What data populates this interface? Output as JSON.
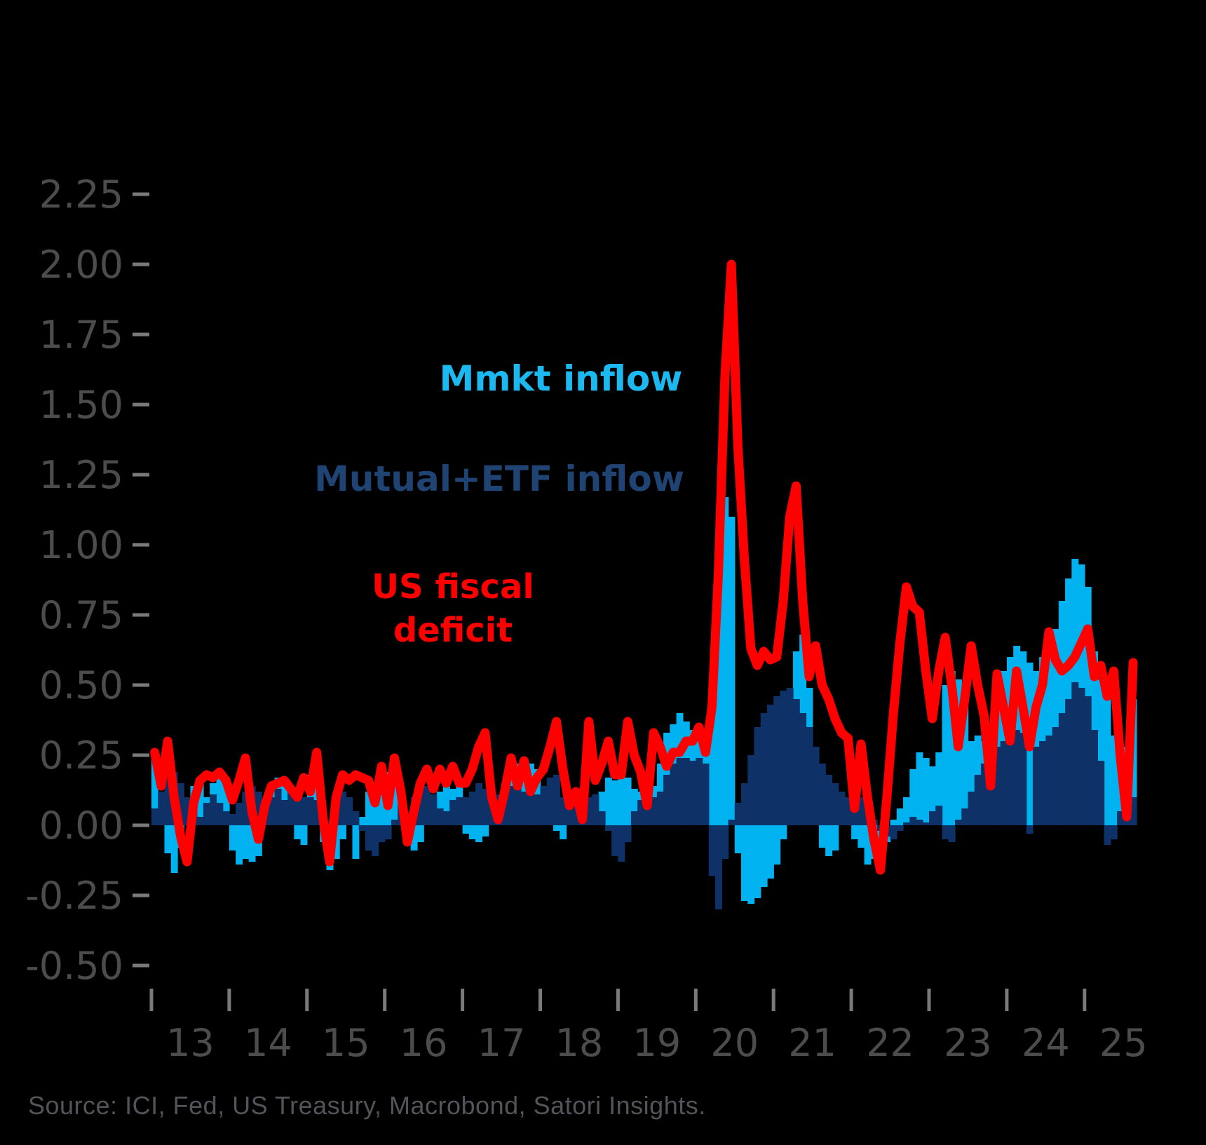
{
  "colors": {
    "background": "#000000",
    "mmkt_bar": "#00B3F0",
    "mutual_etf_bar": "#0E3167",
    "deficit_line": "#FF0000",
    "mmkt_label": "#1CB8F0",
    "mutual_etf_label": "#1F4473",
    "deficit_label": "#FF0000",
    "axis_text": "#4C4C4C",
    "tick_mark": "#7A7A7A",
    "source_text": "#53535A"
  },
  "legend": {
    "mmkt": "Mmkt inflow",
    "mutual_etf": "Mutual+ETF inflow",
    "deficit_line1": "US fiscal",
    "deficit_line2": "deficit"
  },
  "source": {
    "text": "Source: ICI, Fed, US Treasury, Macrobond, Satori Insights."
  },
  "chart_data": {
    "type": "bar",
    "subtype": "monthly bars with overlaid line",
    "title": "",
    "xlabel": "",
    "ylabel": "",
    "units": "USD trn (implied)",
    "ylim": [
      -0.5,
      2.25
    ],
    "grid": false,
    "legend_position": "floating text labels in plot area",
    "yticks": [
      "2.25",
      "2.00",
      "1.75",
      "1.50",
      "1.25",
      "1.00",
      "0.75",
      "0.50",
      "0.25",
      "0.00",
      "-0.25",
      "-0.50"
    ],
    "ytick_values": [
      2.25,
      2.0,
      1.75,
      1.5,
      1.25,
      1.0,
      0.75,
      0.5,
      0.25,
      0.0,
      -0.25,
      -0.5
    ],
    "xtick_labels": [
      "13",
      "14",
      "15",
      "16",
      "17",
      "18",
      "19",
      "20",
      "21",
      "22",
      "23",
      "24",
      "25"
    ],
    "xtick_years": [
      2013,
      2014,
      2015,
      2016,
      2017,
      2018,
      2019,
      2020,
      2021,
      2022,
      2023,
      2024,
      2025
    ],
    "x_start_month": "2013-01",
    "x_end_month": "2025-08",
    "series": [
      {
        "name": "Mmkt inflow",
        "type": "bar",
        "color": "#00B3F0",
        "values_by_year": {
          "2013": [
            0.27,
            0.12,
            -0.1,
            -0.17,
            -0.08,
            0.02,
            0.14,
            0.17,
            0.1,
            0.15,
            0.18,
            0.14
          ],
          "2014": [
            -0.09,
            -0.14,
            -0.12,
            -0.13,
            -0.11,
            0.05,
            0.13,
            0.17,
            0.15,
            0.06,
            -0.05,
            -0.07
          ],
          "2015": [
            0.18,
            0.2,
            -0.06,
            -0.16,
            -0.12,
            -0.05,
            0.05,
            -0.12,
            0.03,
            0.12,
            0.15,
            0.11
          ],
          "2016": [
            0.19,
            0.16,
            0.14,
            -0.07,
            -0.09,
            -0.06,
            0.04,
            0.09,
            0.12,
            0.15,
            0.13,
            0.14
          ],
          "2017": [
            -0.03,
            -0.05,
            -0.06,
            -0.04,
            0.05,
            0.1,
            0.15,
            0.23,
            0.22,
            0.18,
            0.22,
            0.2
          ],
          "2018": [
            0.1,
            0.06,
            -0.02,
            -0.05,
            0.06,
            0.07,
            0.09,
            0.06,
            0.08,
            0.12,
            0.17,
            0.16
          ],
          "2019": [
            0.19,
            0.17,
            0.13,
            0.12,
            0.16,
            0.14,
            0.22,
            0.33,
            0.36,
            0.4,
            0.37,
            0.34
          ],
          "2020": [
            0.3,
            0.32,
            0.4,
            1.02,
            1.17,
            1.1,
            -0.1,
            -0.27,
            -0.28,
            -0.26,
            -0.22,
            -0.19
          ],
          "2021": [
            -0.14,
            -0.05,
            0.45,
            0.62,
            0.68,
            0.49,
            0.19,
            -0.08,
            -0.11,
            -0.09,
            0.05,
            0.08
          ],
          "2022": [
            -0.05,
            -0.08,
            -0.14,
            -0.12,
            -0.05,
            -0.06,
            0.02,
            0.06,
            0.1,
            0.2,
            0.26,
            0.24
          ],
          "2023": [
            0.21,
            0.26,
            0.5,
            0.55,
            0.52,
            0.42,
            0.3,
            0.32,
            0.3,
            0.32,
            0.42,
            0.55
          ],
          "2024": [
            0.6,
            0.64,
            0.62,
            0.58,
            0.55,
            0.6,
            0.64,
            0.7,
            0.8,
            0.88,
            0.95,
            0.93
          ],
          "2025": [
            0.85,
            0.62,
            0.52,
            0.48,
            0.32,
            0.22,
            0.28,
            0.45
          ]
        }
      },
      {
        "name": "Mutual+ETF inflow",
        "type": "bar",
        "color": "#0E3167",
        "values_by_year": {
          "2013": [
            0.06,
            0.12,
            0.17,
            0.19,
            0.15,
            0.1,
            0.06,
            0.03,
            0.08,
            0.11,
            0.08,
            0.05
          ],
          "2014": [
            0.04,
            0.08,
            0.12,
            0.14,
            0.12,
            0.09,
            0.1,
            0.13,
            0.09,
            0.12,
            0.11,
            0.1
          ],
          "2015": [
            0.1,
            0.09,
            0.06,
            0.02,
            0.08,
            0.12,
            0.1,
            0.05,
            -0.02,
            -0.09,
            -0.11,
            -0.06
          ],
          "2016": [
            -0.05,
            0.02,
            0.08,
            0.05,
            0.1,
            0.13,
            0.14,
            0.11,
            0.06,
            0.05,
            0.09,
            0.1
          ],
          "2017": [
            0.1,
            0.12,
            0.15,
            0.13,
            0.12,
            0.11,
            0.13,
            0.14,
            0.13,
            0.12,
            0.14,
            0.11
          ],
          "2018": [
            0.14,
            0.17,
            0.18,
            0.1,
            0.11,
            0.1,
            0.09,
            0.1,
            0.11,
            0.05,
            -0.02,
            -0.11
          ],
          "2019": [
            -0.13,
            -0.06,
            0.05,
            0.09,
            0.11,
            0.1,
            0.12,
            0.18,
            0.22,
            0.24,
            0.24,
            0.23
          ],
          "2020": [
            0.24,
            0.22,
            -0.18,
            -0.3,
            -0.12,
            0.02,
            0.08,
            0.15,
            0.25,
            0.35,
            0.4,
            0.43
          ],
          "2021": [
            0.46,
            0.48,
            0.49,
            0.45,
            0.4,
            0.35,
            0.28,
            0.22,
            0.18,
            0.15,
            0.12,
            0.1
          ],
          "2022": [
            0.15,
            0.1,
            0.06,
            0.02,
            -0.02,
            -0.04,
            -0.05,
            -0.02,
            0.01,
            0.03,
            0.02,
            0.01
          ],
          "2023": [
            0.05,
            0.07,
            -0.05,
            -0.06,
            0.02,
            0.06,
            0.12,
            0.18,
            0.22,
            0.26,
            0.28,
            0.3
          ],
          "2024": [
            0.31,
            0.34,
            0.33,
            -0.03,
            0.28,
            0.3,
            0.32,
            0.35,
            0.4,
            0.45,
            0.51,
            0.49
          ],
          "2025": [
            0.46,
            0.34,
            0.23,
            -0.07,
            -0.05,
            0.05,
            0.02,
            0.1
          ]
        }
      },
      {
        "name": "US fiscal deficit",
        "type": "line",
        "color": "#FF0000",
        "values_by_year": {
          "2013": [
            0.26,
            0.14,
            0.3,
            0.1,
            -0.04,
            -0.13,
            0.08,
            0.16,
            0.18,
            0.17,
            0.19,
            0.16
          ],
          "2014": [
            0.09,
            0.16,
            0.24,
            0.05,
            -0.05,
            0.07,
            0.14,
            0.15,
            0.16,
            0.13,
            0.1,
            0.17
          ],
          "2015": [
            0.12,
            0.26,
            0.02,
            -0.13,
            0.1,
            0.18,
            0.16,
            0.18,
            0.17,
            0.16,
            0.08,
            0.21
          ],
          "2016": [
            0.07,
            0.24,
            0.12,
            -0.06,
            0.05,
            0.15,
            0.2,
            0.13,
            0.2,
            0.15,
            0.21,
            0.15
          ],
          "2017": [
            0.15,
            0.2,
            0.28,
            0.33,
            0.1,
            0.02,
            0.12,
            0.24,
            0.14,
            0.23,
            0.12,
            0.17
          ],
          "2018": [
            0.2,
            0.28,
            0.37,
            0.2,
            0.07,
            0.12,
            0.02,
            0.37,
            0.16,
            0.22,
            0.3,
            0.18
          ],
          "2019": [
            0.18,
            0.37,
            0.25,
            0.19,
            0.07,
            0.33,
            0.28,
            0.21,
            0.26,
            0.26,
            0.3,
            0.3
          ],
          "2020": [
            0.35,
            0.26,
            0.42,
            0.9,
            1.6,
            2.0,
            1.35,
            0.95,
            0.63,
            0.57,
            0.62,
            0.59
          ],
          "2021": [
            0.6,
            0.8,
            1.1,
            1.21,
            0.8,
            0.53,
            0.64,
            0.5,
            0.45,
            0.38,
            0.33,
            0.31
          ],
          "2022": [
            0.06,
            0.29,
            0.1,
            -0.05,
            -0.16,
            0.1,
            0.4,
            0.65,
            0.85,
            0.78,
            0.76,
            0.55
          ],
          "2023": [
            0.38,
            0.55,
            0.67,
            0.5,
            0.28,
            0.45,
            0.64,
            0.5,
            0.39,
            0.14,
            0.54,
            0.42
          ],
          "2024": [
            0.3,
            0.55,
            0.42,
            0.28,
            0.42,
            0.5,
            0.69,
            0.59,
            0.55,
            0.57,
            0.6,
            0.65
          ],
          "2025": [
            0.7,
            0.53,
            0.57,
            0.46,
            0.55,
            0.25,
            0.03,
            0.58
          ]
        }
      }
    ]
  }
}
